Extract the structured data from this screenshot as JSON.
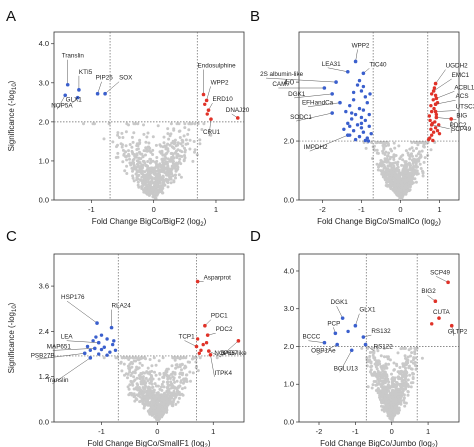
{
  "figure": {
    "y_label": "Significance (-log",
    "y_label_sub": "10",
    "y_label_close": ")"
  },
  "chart_data": [
    {
      "type": "scatter",
      "panel": "A",
      "xlabel": "Fold Change BigCo/BigF2 (log",
      "xlabel_sub": "2",
      "xlabel_close": ")",
      "xlim": [
        -1.6,
        1.45
      ],
      "ylim": [
        0,
        4.3
      ],
      "xticks": [
        -1,
        0,
        1
      ],
      "yticks": [
        0,
        1,
        2,
        3,
        4
      ],
      "thresholds": {
        "x": [
          -0.7,
          0.7
        ],
        "y": 2.0
      },
      "colors": {
        "background": "#c9c9c9",
        "down": "#3a5fcd",
        "up": "#e03228"
      },
      "labeled": [
        {
          "name": "Translin",
          "x": -1.38,
          "y": 2.95,
          "side": "down"
        },
        {
          "name": "KTI5",
          "x": -1.2,
          "y": 2.82,
          "side": "down"
        },
        {
          "name": "PIP25",
          "x": -0.9,
          "y": 2.72,
          "side": "down"
        },
        {
          "name": "SOX",
          "x": -0.78,
          "y": 2.72,
          "side": "down"
        },
        {
          "name": "GLX1",
          "x": -1.22,
          "y": 2.62,
          "side": "down"
        },
        {
          "name": "NOP5A",
          "x": -1.42,
          "y": 2.68,
          "side": "down"
        },
        {
          "name": "Endosulphine",
          "x": 0.8,
          "y": 2.7,
          "side": "up"
        },
        {
          "name": "WPP2",
          "x": 0.85,
          "y": 2.55,
          "side": "up"
        },
        {
          "name": "ERD10",
          "x": 0.88,
          "y": 2.3,
          "side": "up"
        },
        {
          "name": "DNAJ20",
          "x": 1.35,
          "y": 2.1,
          "side": "up"
        },
        {
          "name": "CRU1",
          "x": 0.92,
          "y": 2.07,
          "side": "up"
        }
      ],
      "extra_points": {
        "down": [],
        "up": [
          [
            0.82,
            2.45
          ],
          [
            0.86,
            2.2
          ]
        ]
      }
    },
    {
      "type": "scatter",
      "panel": "B",
      "xlabel": "Fold Change BigCo/SmallCo (log",
      "xlabel_sub": "2",
      "xlabel_close": ")",
      "xlim": [
        -2.6,
        1.5
      ],
      "ylim": [
        0,
        5.7
      ],
      "xticks": [
        -2,
        -1,
        0,
        1
      ],
      "yticks": [
        0,
        2,
        4
      ],
      "thresholds": {
        "x": [
          -0.7,
          0.7
        ],
        "y": 2.0
      },
      "colors": {
        "background": "#c9c9c9",
        "down": "#3a5fcd",
        "up": "#e03228"
      },
      "labeled": [
        {
          "name": "WPP2",
          "x": -1.15,
          "y": 4.7,
          "side": "down"
        },
        {
          "name": "LEA31",
          "x": -1.35,
          "y": 4.35,
          "side": "down"
        },
        {
          "name": "TIC40",
          "x": -0.95,
          "y": 4.3,
          "side": "down"
        },
        {
          "name": "2S albumin-like",
          "x": -1.65,
          "y": 4.0,
          "side": "down"
        },
        {
          "name": "CAM7",
          "x": -1.95,
          "y": 3.8,
          "side": "down"
        },
        {
          "name": "DGK1",
          "x": -1.75,
          "y": 3.6,
          "side": "down"
        },
        {
          "name": "EFHandCa",
          "x": -1.55,
          "y": 3.3,
          "side": "down"
        },
        {
          "name": "SODC1",
          "x": -1.75,
          "y": 2.95,
          "side": "down"
        },
        {
          "name": "IMPDH2",
          "x": -1.35,
          "y": 2.2,
          "side": "down"
        },
        {
          "name": "UGDH2",
          "x": 0.9,
          "y": 3.95,
          "side": "up"
        },
        {
          "name": "EMC1",
          "x": 0.85,
          "y": 3.7,
          "side": "up"
        },
        {
          "name": "ACBL1",
          "x": 0.92,
          "y": 3.45,
          "side": "up"
        },
        {
          "name": "ACS",
          "x": 0.9,
          "y": 3.25,
          "side": "up"
        },
        {
          "name": "UTSC3",
          "x": 0.9,
          "y": 3.0,
          "side": "up"
        },
        {
          "name": "BIG",
          "x": 0.92,
          "y": 2.8,
          "side": "up"
        },
        {
          "name": "PDC2",
          "x": 0.8,
          "y": 2.55,
          "side": "up"
        },
        {
          "name": "SCP49",
          "x": 1.3,
          "y": 2.75,
          "side": "up"
        }
      ],
      "extra_points": {
        "down": [
          [
            -1.1,
            3.9
          ],
          [
            -1.0,
            3.7
          ],
          [
            -0.9,
            3.5
          ],
          [
            -1.2,
            3.4
          ],
          [
            -0.85,
            3.3
          ],
          [
            -1.3,
            3.2
          ],
          [
            -1.05,
            3.1
          ],
          [
            -0.95,
            3.05
          ],
          [
            -1.4,
            3.0
          ],
          [
            -1.15,
            2.9
          ],
          [
            -0.8,
            2.9
          ],
          [
            -1.0,
            2.8
          ],
          [
            -1.25,
            2.75
          ],
          [
            -0.9,
            2.7
          ],
          [
            -1.35,
            2.6
          ],
          [
            -1.1,
            2.55
          ],
          [
            -0.8,
            2.5
          ],
          [
            -1.0,
            2.45
          ],
          [
            -1.2,
            2.35
          ],
          [
            -0.95,
            2.3
          ],
          [
            -0.75,
            2.25
          ],
          [
            -1.3,
            2.2
          ],
          [
            -1.05,
            2.15
          ],
          [
            -0.85,
            2.1
          ],
          [
            -1.15,
            2.05
          ],
          [
            -0.9,
            2.02
          ],
          [
            -1.45,
            2.4
          ],
          [
            -1.25,
            2.95
          ],
          [
            -0.78,
            3.6
          ],
          [
            -1.2,
            3.65
          ],
          [
            -0.95,
            3.85
          ],
          [
            -1.05,
            4.05
          ],
          [
            -1.3,
            2.5
          ],
          [
            -0.82,
            2.0
          ],
          [
            -1.0,
            2.6
          ]
        ],
        "up": [
          [
            0.75,
            2.1
          ],
          [
            0.8,
            2.2
          ],
          [
            0.85,
            2.3
          ],
          [
            0.78,
            2.4
          ],
          [
            0.9,
            2.45
          ],
          [
            0.95,
            2.35
          ],
          [
            0.82,
            2.6
          ],
          [
            0.88,
            2.65
          ],
          [
            0.76,
            2.7
          ],
          [
            0.92,
            2.9
          ],
          [
            0.8,
            3.0
          ],
          [
            0.86,
            3.1
          ],
          [
            0.78,
            3.2
          ],
          [
            0.95,
            3.3
          ],
          [
            0.84,
            3.4
          ],
          [
            0.9,
            3.55
          ],
          [
            0.8,
            3.6
          ],
          [
            0.87,
            3.8
          ],
          [
            0.74,
            2.85
          ],
          [
            0.98,
            2.55
          ],
          [
            0.72,
            2.05
          ],
          [
            1.0,
            2.25
          ],
          [
            0.83,
            2.02
          ]
        ]
      }
    },
    {
      "type": "scatter",
      "panel": "C",
      "xlabel": "Fold Change BigCo/SmallF1 (log",
      "xlabel_sub": "2",
      "xlabel_close": ")",
      "xlim": [
        -1.85,
        1.55
      ],
      "ylim": [
        0,
        4.45
      ],
      "xticks": [
        -1,
        0,
        1
      ],
      "yticks": [
        0,
        1.2,
        2.4,
        3.6
      ],
      "thresholds": {
        "x": [
          -0.7,
          0.7
        ],
        "y": 1.75
      },
      "colors": {
        "background": "#c9c9c9",
        "down": "#3a5fcd",
        "up": "#e03228"
      },
      "labeled": [
        {
          "name": "HSP176",
          "x": -1.08,
          "y": 2.62,
          "side": "down"
        },
        {
          "name": "RLA24",
          "x": -0.82,
          "y": 2.5,
          "side": "down"
        },
        {
          "name": "LEA",
          "x": -1.05,
          "y": 2.1,
          "side": "down"
        },
        {
          "name": "MAP651",
          "x": -1.12,
          "y": 1.95,
          "side": "down"
        },
        {
          "name": "PSB27B",
          "x": -1.3,
          "y": 1.82,
          "side": "down"
        },
        {
          "name": "Translin",
          "x": -1.2,
          "y": 1.7,
          "side": "down"
        },
        {
          "name": "Asparprot",
          "x": 0.72,
          "y": 3.72,
          "side": "up"
        },
        {
          "name": "PDC1",
          "x": 0.85,
          "y": 2.55,
          "side": "up"
        },
        {
          "name": "PDC2",
          "x": 0.9,
          "y": 2.3,
          "side": "up"
        },
        {
          "name": "TCP1",
          "x": 0.7,
          "y": 2.0,
          "side": "up"
        },
        {
          "name": "BAG7",
          "x": 0.92,
          "y": 1.88,
          "side": "up"
        },
        {
          "name": "NOP56-like",
          "x": 1.45,
          "y": 2.15,
          "side": "up"
        },
        {
          "name": "ITPK4",
          "x": 0.95,
          "y": 1.78,
          "side": "up"
        }
      ],
      "extra_points": {
        "down": [
          [
            -1.0,
            2.3
          ],
          [
            -0.9,
            2.2
          ],
          [
            -1.15,
            2.15
          ],
          [
            -0.8,
            2.05
          ],
          [
            -0.95,
            1.98
          ],
          [
            -1.2,
            1.9
          ],
          [
            -0.85,
            1.85
          ],
          [
            -1.05,
            1.8
          ],
          [
            -0.75,
            1.9
          ],
          [
            -1.25,
            2.0
          ],
          [
            -0.9,
            1.77
          ],
          [
            -1.1,
            2.25
          ],
          [
            -0.78,
            2.15
          ],
          [
            -1.0,
            1.92
          ]
        ],
        "up": [
          [
            0.78,
            1.9
          ],
          [
            0.82,
            2.05
          ],
          [
            0.75,
            1.82
          ],
          [
            0.88,
            2.1
          ],
          [
            0.72,
            2.2
          ]
        ]
      }
    },
    {
      "type": "scatter",
      "panel": "D",
      "xlabel": "Fold Change BigCo/Jumbo (log",
      "xlabel_sub": "2",
      "xlabel_close": ")",
      "xlim": [
        -2.55,
        1.85
      ],
      "ylim": [
        0,
        4.45
      ],
      "xticks": [
        -2,
        -1,
        0,
        1
      ],
      "yticks": [
        0,
        1,
        2,
        3,
        4
      ],
      "thresholds": {
        "x": [
          -0.7,
          0.7
        ],
        "y": 2.0
      },
      "colors": {
        "background": "#c9c9c9",
        "down": "#3a5fcd",
        "up": "#e03228"
      },
      "labeled": [
        {
          "name": "DGK1",
          "x": -1.35,
          "y": 2.75,
          "side": "down"
        },
        {
          "name": "GLX1",
          "x": -1.0,
          "y": 2.55,
          "side": "down"
        },
        {
          "name": "PCP",
          "x": -1.55,
          "y": 2.35,
          "side": "down"
        },
        {
          "name": "BCCC",
          "x": -1.85,
          "y": 2.1,
          "side": "down"
        },
        {
          "name": "RS132",
          "x": -0.78,
          "y": 2.25,
          "side": "down"
        },
        {
          "name": "OBP1Ae",
          "x": -1.5,
          "y": 2.05,
          "side": "down"
        },
        {
          "name": "RS122",
          "x": -0.72,
          "y": 2.05,
          "side": "down"
        },
        {
          "name": "BGLU13",
          "x": -1.1,
          "y": 1.9,
          "side": "down"
        },
        {
          "name": "SCP49",
          "x": 1.55,
          "y": 3.7,
          "side": "up"
        },
        {
          "name": "BIG2",
          "x": 1.2,
          "y": 3.2,
          "side": "up"
        },
        {
          "name": "CUTA",
          "x": 1.3,
          "y": 2.75,
          "side": "up"
        },
        {
          "name": "GLTP2",
          "x": 1.65,
          "y": 2.55,
          "side": "up"
        }
      ],
      "extra_points": {
        "down": [
          [
            -1.2,
            2.4
          ]
        ],
        "up": [
          [
            1.1,
            2.6
          ]
        ]
      }
    }
  ]
}
